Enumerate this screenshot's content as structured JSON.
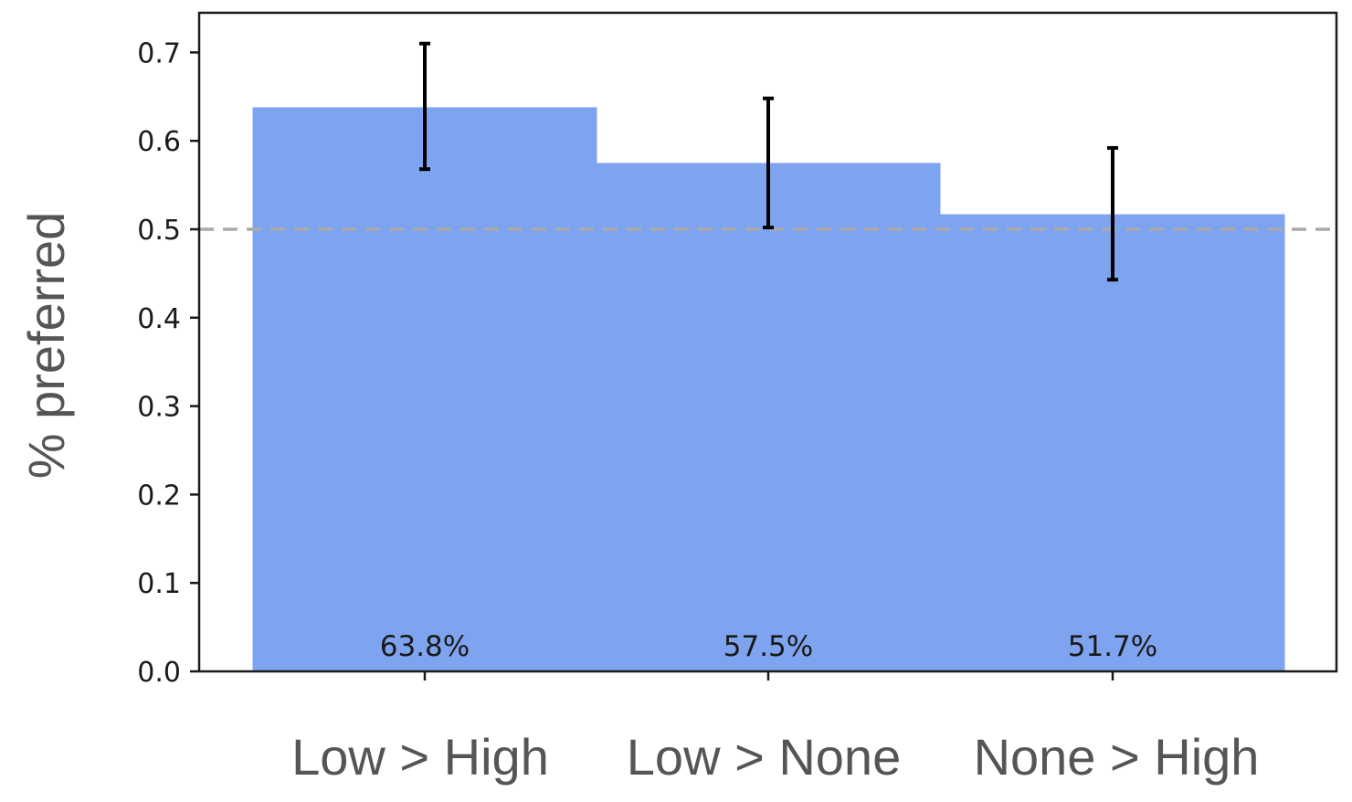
{
  "chart_data": {
    "type": "bar",
    "categories": [
      "Low > High",
      "Low > None",
      "None > High"
    ],
    "values": [
      0.638,
      0.575,
      0.517
    ],
    "error_low": [
      0.568,
      0.502,
      0.443
    ],
    "error_high": [
      0.71,
      0.648,
      0.592
    ],
    "data_labels": [
      "63.8%",
      "57.5%",
      "51.7%"
    ],
    "reference_line": 0.5,
    "title": "",
    "xlabel": "",
    "ylabel": "% preferred",
    "ylim": [
      0,
      0.745
    ],
    "yticks": [
      0.0,
      0.1,
      0.2,
      0.3,
      0.4,
      0.5,
      0.6,
      0.7
    ],
    "ytick_labels": [
      "0.0",
      "0.1",
      "0.2",
      "0.3",
      "0.4",
      "0.5",
      "0.6",
      "0.7"
    ],
    "grid": false,
    "colors": {
      "bar": "#7fa4ef",
      "error_bar": "#000000",
      "reference_line": "#aaaaaa",
      "axis": "#1a1a1a"
    }
  }
}
